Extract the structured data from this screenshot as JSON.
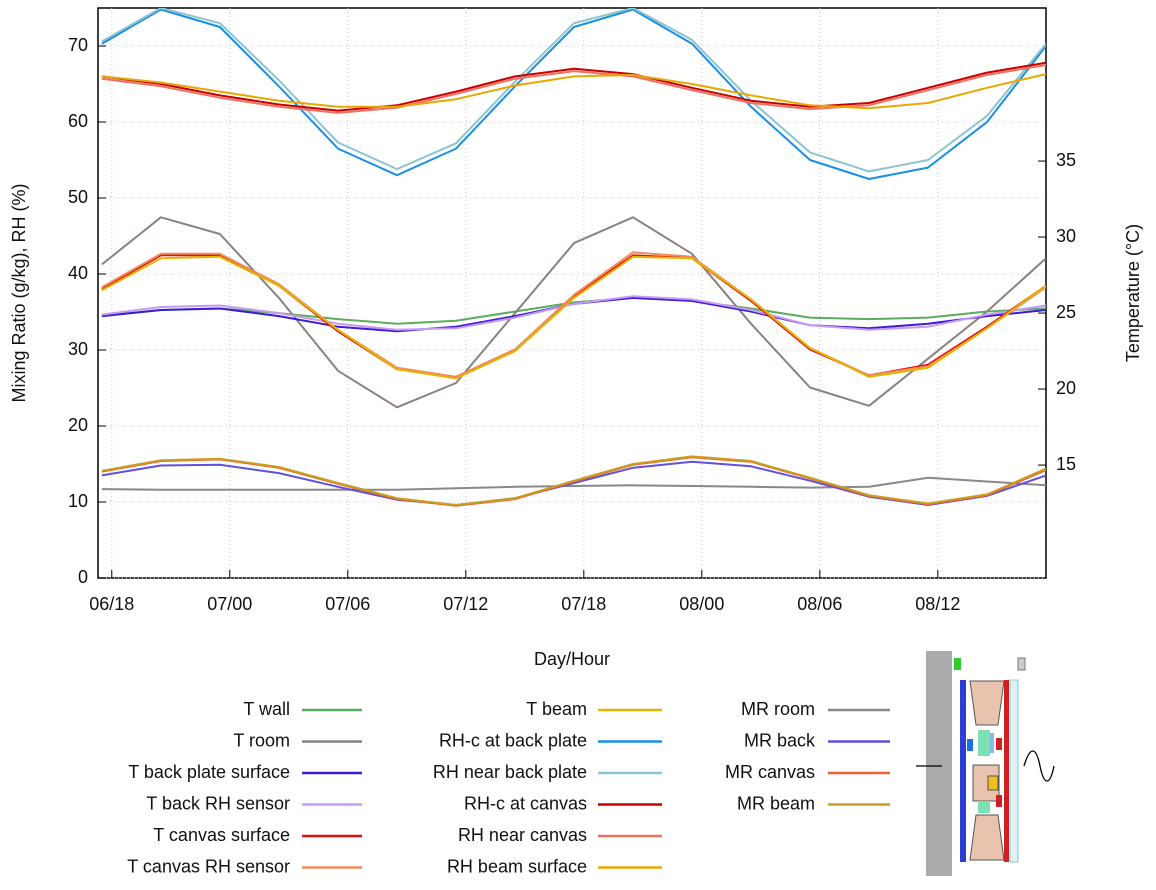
{
  "chart_data": {
    "type": "line",
    "xlabel": "Day/Hour",
    "ylabel": "Mixing Ratio (g/kg), RH (%)",
    "y2label": "Temperature (°C)",
    "x": [
      17.5,
      20.5,
      23.5,
      26.5,
      29.5,
      32.5,
      35.5,
      38.5,
      41.5,
      44.5,
      47.5,
      50.5,
      53.5,
      56.5,
      59.5,
      62.5,
      65.5
    ],
    "xlim": [
      17.3,
      65.5
    ],
    "xticks": [
      {
        "value": 18,
        "label": "06/18"
      },
      {
        "value": 24,
        "label": "07/00"
      },
      {
        "value": 30,
        "label": "07/06"
      },
      {
        "value": 36,
        "label": "07/12"
      },
      {
        "value": 42,
        "label": "07/18"
      },
      {
        "value": 48,
        "label": "08/00"
      },
      {
        "value": 54,
        "label": "08/06"
      },
      {
        "value": 60,
        "label": "08/12"
      }
    ],
    "ylim": [
      0,
      75
    ],
    "yticks": [
      0,
      10,
      20,
      30,
      40,
      50,
      60,
      70
    ],
    "y2lim": [
      7.57,
      45.07
    ],
    "y2ticks": [
      15,
      20,
      25,
      30,
      35
    ],
    "grid": true,
    "series": [
      {
        "name": "T wall",
        "color": "#5aad5a",
        "axis": "y2",
        "values": [
          24.8,
          25.2,
          25.3,
          25.0,
          24.6,
          24.3,
          24.5,
          25.1,
          25.7,
          26.0,
          25.8,
          25.3,
          24.7,
          24.6,
          24.7,
          25.1,
          25.3
        ]
      },
      {
        "name": "T room",
        "color": "#8c8080",
        "axis": "y2",
        "values": [
          28.2,
          31.3,
          30.2,
          26.0,
          21.2,
          18.8,
          20.4,
          25.0,
          29.6,
          31.3,
          28.9,
          24.3,
          20.1,
          18.9,
          22.0,
          25.1,
          28.6
        ]
      },
      {
        "name": "T back plate surface",
        "color": "#3b1ad9",
        "axis": "y2",
        "values": [
          24.8,
          25.2,
          25.3,
          24.8,
          24.1,
          23.8,
          24.1,
          24.8,
          25.6,
          26.0,
          25.8,
          25.1,
          24.2,
          24.0,
          24.3,
          24.8,
          25.2
        ]
      },
      {
        "name": "T back RH sensor",
        "color": "#c79af2",
        "axis": "y2",
        "values": [
          24.9,
          25.4,
          25.5,
          25.0,
          24.3,
          23.9,
          24.0,
          24.7,
          25.6,
          26.1,
          25.9,
          25.2,
          24.2,
          23.9,
          24.1,
          24.9,
          25.5
        ]
      },
      {
        "name": "T canvas surface",
        "color": "#e01010",
        "axis": "y2",
        "values": [
          26.6,
          28.8,
          28.8,
          26.8,
          23.8,
          21.3,
          20.8,
          22.6,
          26.1,
          28.8,
          28.6,
          25.8,
          22.6,
          20.9,
          21.6,
          24.1,
          26.8
        ]
      },
      {
        "name": "T canvas RH sensor",
        "color": "#f08a5d",
        "axis": "y2",
        "values": [
          26.7,
          28.9,
          28.9,
          26.9,
          23.9,
          21.4,
          20.8,
          22.6,
          26.2,
          29.0,
          28.7,
          25.9,
          22.7,
          20.9,
          21.5,
          24.0,
          26.7
        ]
      },
      {
        "name": "T beam",
        "color": "#e6b400",
        "axis": "y2",
        "values": [
          26.5,
          28.6,
          28.7,
          26.8,
          23.9,
          21.3,
          20.7,
          22.5,
          26.0,
          28.7,
          28.6,
          25.9,
          22.7,
          20.8,
          21.4,
          24.0,
          26.8
        ]
      },
      {
        "name": "RH-c at back plate",
        "color": "#1a8fe6",
        "values": [
          70.3,
          74.8,
          72.5,
          64.7,
          56.5,
          53.0,
          56.5,
          64.7,
          72.5,
          74.8,
          70.3,
          62.0,
          55.0,
          52.5,
          54.0,
          60.0,
          70.0
        ]
      },
      {
        "name": "RH near back plate",
        "color": "#8cc4cf",
        "values": [
          70.6,
          75.0,
          73.0,
          65.5,
          57.3,
          53.8,
          57.2,
          65.3,
          73.0,
          75.0,
          70.8,
          62.8,
          56.0,
          53.5,
          55.0,
          60.8,
          70.3
        ]
      },
      {
        "name": "RH-c at canvas",
        "color": "#c80000",
        "values": [
          66.0,
          65.0,
          63.5,
          62.3,
          61.5,
          62.2,
          64.0,
          66.0,
          67.0,
          66.3,
          64.5,
          62.8,
          62.0,
          62.5,
          64.5,
          66.5,
          67.8
        ]
      },
      {
        "name": "RH near canvas",
        "color": "#f07060",
        "values": [
          65.7,
          64.7,
          63.2,
          62.0,
          61.2,
          61.9,
          63.7,
          65.7,
          66.7,
          66.0,
          64.2,
          62.5,
          61.7,
          62.2,
          64.2,
          66.2,
          67.5
        ]
      },
      {
        "name": "RH beam surface",
        "color": "#e8a800",
        "values": [
          66.0,
          65.2,
          64.0,
          62.8,
          62.0,
          62.0,
          63.0,
          64.8,
          66.0,
          66.2,
          65.0,
          63.5,
          62.2,
          61.8,
          62.5,
          64.5,
          66.3
        ]
      },
      {
        "name": "MR room",
        "color": "#888888",
        "values": [
          11.7,
          11.6,
          11.6,
          11.6,
          11.6,
          11.6,
          11.8,
          12.0,
          12.1,
          12.2,
          12.1,
          12.0,
          11.9,
          12.0,
          13.2,
          12.7,
          12.2
        ]
      },
      {
        "name": "MR back",
        "color": "#6050e0",
        "values": [
          13.5,
          14.8,
          14.9,
          13.8,
          12.0,
          10.3,
          9.6,
          10.5,
          12.5,
          14.5,
          15.3,
          14.7,
          12.8,
          10.7,
          9.6,
          10.8,
          13.5
        ]
      },
      {
        "name": "MR canvas",
        "color": "#f06030",
        "values": [
          14.0,
          15.4,
          15.6,
          14.5,
          12.4,
          10.4,
          9.5,
          10.4,
          12.7,
          14.9,
          15.9,
          15.3,
          13.1,
          10.8,
          9.7,
          10.9,
          14.2
        ]
      },
      {
        "name": "MR beam",
        "color": "#c8a020",
        "values": [
          14.1,
          15.5,
          15.7,
          14.6,
          12.5,
          10.5,
          9.6,
          10.5,
          12.8,
          15.0,
          16.0,
          15.4,
          13.2,
          10.9,
          9.8,
          11.0,
          14.4
        ]
      }
    ]
  }
}
